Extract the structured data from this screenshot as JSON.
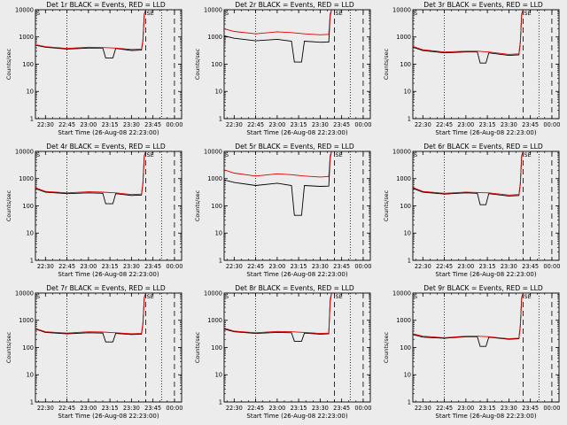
{
  "chart_data": [
    {
      "title": "Det 1r BLACK = Events, RED = LLD",
      "type": "line",
      "xlabel": "Start Time (26-Aug-08 22:23:00)",
      "ylabel": "Counts/sec",
      "x_ticks": [
        "22:30",
        "22:45",
        "23:00",
        "23:15",
        "23:30",
        "23:45",
        "00:00"
      ],
      "y_ticks": [
        "1",
        "10",
        "100",
        "1000",
        "10000"
      ],
      "ylim": [
        1,
        10000
      ],
      "yscale": "log",
      "series": [
        {
          "color": "#000000",
          "x": [
            "22:23",
            "22:30",
            "22:45",
            "23:00",
            "23:10",
            "23:12",
            "23:17",
            "23:19",
            "23:30",
            "23:37",
            "23:38",
            "23:39",
            "23:40"
          ],
          "values": [
            500,
            420,
            360,
            390,
            390,
            170,
            170,
            380,
            320,
            330,
            700,
            7000,
            10000
          ]
        },
        {
          "color": "#e00000",
          "x": [
            "22:23",
            "22:30",
            "22:45",
            "23:00",
            "23:10",
            "23:19",
            "23:30",
            "23:37",
            "23:38",
            "23:39",
            "23:40"
          ],
          "values": [
            520,
            440,
            380,
            420,
            410,
            390,
            350,
            360,
            760,
            7200,
            10000
          ]
        }
      ],
      "corner_left": "S",
      "corner_right": "SE"
    },
    {
      "title": "Det 2r BLACK = Events, RED = LLD",
      "type": "line",
      "xlabel": "Start Time (26-Aug-08 22:23:00)",
      "ylabel": "Counts/sec",
      "x_ticks": [
        "22:30",
        "22:45",
        "23:00",
        "23:15",
        "23:30",
        "23:45",
        "00:00"
      ],
      "y_ticks": [
        "1",
        "10",
        "100",
        "1000",
        "10000"
      ],
      "ylim": [
        1,
        10000
      ],
      "yscale": "log",
      "series": [
        {
          "color": "#000000",
          "x": [
            "22:23",
            "22:30",
            "22:45",
            "23:00",
            "23:10",
            "23:12",
            "23:17",
            "23:19",
            "23:30",
            "23:36",
            "23:37",
            "23:38"
          ],
          "values": [
            1100,
            900,
            720,
            820,
            700,
            120,
            120,
            700,
            640,
            650,
            6000,
            10000
          ]
        },
        {
          "color": "#e00000",
          "x": [
            "22:23",
            "22:30",
            "22:45",
            "23:00",
            "23:10",
            "23:19",
            "23:30",
            "23:36",
            "23:37",
            "23:38"
          ],
          "values": [
            2000,
            1600,
            1300,
            1550,
            1450,
            1300,
            1200,
            1250,
            7000,
            10000
          ]
        }
      ],
      "corner_left": "S",
      "corner_right": "SE"
    },
    {
      "title": "Det 3r BLACK = Events, RED = LLD",
      "type": "line",
      "xlabel": "Start Time (26-Aug-08 22:23:00)",
      "ylabel": "Counts/sec",
      "x_ticks": [
        "22:30",
        "22:45",
        "23:00",
        "23:15",
        "23:30",
        "23:45",
        "00:00"
      ],
      "y_ticks": [
        "1",
        "10",
        "100",
        "1000",
        "10000"
      ],
      "ylim": [
        1,
        10000
      ],
      "yscale": "log",
      "series": [
        {
          "color": "#000000",
          "x": [
            "22:23",
            "22:30",
            "22:45",
            "23:00",
            "23:08",
            "23:10",
            "23:14",
            "23:16",
            "23:30",
            "23:37",
            "23:38",
            "23:39",
            "23:40"
          ],
          "values": [
            420,
            320,
            260,
            280,
            280,
            110,
            110,
            260,
            210,
            220,
            600,
            7000,
            10000
          ]
        },
        {
          "color": "#e00000",
          "x": [
            "22:23",
            "22:30",
            "22:45",
            "23:00",
            "23:08",
            "23:16",
            "23:30",
            "23:37",
            "23:38",
            "23:39",
            "23:40"
          ],
          "values": [
            450,
            340,
            280,
            300,
            300,
            280,
            230,
            240,
            650,
            7200,
            10000
          ]
        }
      ],
      "corner_left": "S",
      "corner_right": "SE"
    },
    {
      "title": "Det 4r BLACK = Events, RED = LLD",
      "type": "line",
      "xlabel": "Start Time (26-Aug-08 22:23:00)",
      "ylabel": "Counts/sec",
      "x_ticks": [
        "22:30",
        "22:45",
        "23:00",
        "23:15",
        "23:30",
        "23:45",
        "00:00"
      ],
      "y_ticks": [
        "1",
        "10",
        "100",
        "1000",
        "10000"
      ],
      "ylim": [
        1,
        10000
      ],
      "yscale": "log",
      "series": [
        {
          "color": "#000000",
          "x": [
            "22:23",
            "22:30",
            "22:45",
            "23:00",
            "23:10",
            "23:12",
            "23:17",
            "23:19",
            "23:30",
            "23:37",
            "23:38",
            "23:39",
            "23:40"
          ],
          "values": [
            430,
            320,
            280,
            300,
            290,
            120,
            120,
            280,
            240,
            250,
            650,
            7000,
            10000
          ]
        },
        {
          "color": "#e00000",
          "x": [
            "22:23",
            "22:30",
            "22:45",
            "23:00",
            "23:10",
            "23:19",
            "23:30",
            "23:37",
            "23:38",
            "23:39",
            "23:40"
          ],
          "values": [
            460,
            340,
            300,
            330,
            320,
            300,
            260,
            270,
            700,
            7200,
            10000
          ]
        }
      ],
      "corner_left": "S",
      "corner_right": "SE"
    },
    {
      "title": "Det 5r BLACK = Events, RED = LLD",
      "type": "line",
      "xlabel": "Start Time (26-Aug-08 22:23:00)",
      "ylabel": "Counts/sec",
      "x_ticks": [
        "22:30",
        "22:45",
        "23:00",
        "23:15",
        "23:30",
        "23:45",
        "00:00"
      ],
      "y_ticks": [
        "1",
        "10",
        "100",
        "1000",
        "10000"
      ],
      "ylim": [
        1,
        10000
      ],
      "yscale": "log",
      "series": [
        {
          "color": "#000000",
          "x": [
            "22:23",
            "22:30",
            "22:45",
            "23:00",
            "23:10",
            "23:12",
            "23:17",
            "23:19",
            "23:30",
            "23:36",
            "23:37",
            "23:38"
          ],
          "values": [
            900,
            720,
            560,
            680,
            560,
            45,
            45,
            560,
            520,
            530,
            6000,
            10000
          ]
        },
        {
          "color": "#e00000",
          "x": [
            "22:23",
            "22:30",
            "22:45",
            "23:00",
            "23:10",
            "23:19",
            "23:30",
            "23:36",
            "23:37",
            "23:38"
          ],
          "values": [
            2100,
            1600,
            1250,
            1500,
            1400,
            1250,
            1150,
            1200,
            7000,
            10000
          ]
        }
      ],
      "corner_left": "S",
      "corner_right": "SE"
    },
    {
      "title": "Det 6r BLACK = Events, RED = LLD",
      "type": "line",
      "xlabel": "Start Time (26-Aug-08 22:23:00)",
      "ylabel": "Counts/sec",
      "x_ticks": [
        "22:30",
        "22:45",
        "23:00",
        "23:15",
        "23:30",
        "23:45",
        "00:00"
      ],
      "y_ticks": [
        "1",
        "10",
        "100",
        "1000",
        "10000"
      ],
      "ylim": [
        1,
        10000
      ],
      "yscale": "log",
      "series": [
        {
          "color": "#000000",
          "x": [
            "22:23",
            "22:30",
            "22:45",
            "23:00",
            "23:08",
            "23:10",
            "23:14",
            "23:16",
            "23:30",
            "23:37",
            "23:38",
            "23:39",
            "23:40"
          ],
          "values": [
            440,
            320,
            270,
            300,
            290,
            110,
            110,
            280,
            230,
            240,
            620,
            7000,
            10000
          ]
        },
        {
          "color": "#e00000",
          "x": [
            "22:23",
            "22:30",
            "22:45",
            "23:00",
            "23:08",
            "23:16",
            "23:30",
            "23:37",
            "23:38",
            "23:39",
            "23:40"
          ],
          "values": [
            470,
            340,
            290,
            320,
            310,
            300,
            250,
            260,
            680,
            7200,
            10000
          ]
        }
      ],
      "corner_left": "S",
      "corner_right": "SE"
    },
    {
      "title": "Det 7r BLACK = Events, RED = LLD",
      "type": "line",
      "xlabel": "Start Time (26-Aug-08 22:23:00)",
      "ylabel": "Counts/sec",
      "x_ticks": [
        "22:30",
        "22:45",
        "23:00",
        "23:15",
        "23:30",
        "23:45",
        "00:00"
      ],
      "y_ticks": [
        "1",
        "10",
        "100",
        "1000",
        "10000"
      ],
      "ylim": [
        1,
        10000
      ],
      "yscale": "log",
      "series": [
        {
          "color": "#000000",
          "x": [
            "22:23",
            "22:30",
            "22:45",
            "23:00",
            "23:10",
            "23:12",
            "23:17",
            "23:19",
            "23:30",
            "23:37",
            "23:38",
            "23:39",
            "23:40"
          ],
          "values": [
            480,
            360,
            320,
            350,
            340,
            160,
            160,
            330,
            300,
            310,
            720,
            7000,
            10000
          ]
        },
        {
          "color": "#e00000",
          "x": [
            "22:23",
            "22:30",
            "22:45",
            "23:00",
            "23:10",
            "23:19",
            "23:30",
            "23:37",
            "23:38",
            "23:39",
            "23:40"
          ],
          "values": [
            500,
            380,
            340,
            380,
            370,
            350,
            320,
            330,
            780,
            7200,
            10000
          ]
        }
      ],
      "corner_left": "S",
      "corner_right": "SE"
    },
    {
      "title": "Det 8r BLACK = Events, RED = LLD",
      "type": "line",
      "xlabel": "Start Time (26-Aug-08 22:23:00)",
      "ylabel": "Counts/sec",
      "x_ticks": [
        "22:30",
        "22:45",
        "23:00",
        "23:15",
        "23:30",
        "23:45",
        "00:00"
      ],
      "y_ticks": [
        "1",
        "10",
        "100",
        "1000",
        "10000"
      ],
      "ylim": [
        1,
        10000
      ],
      "yscale": "log",
      "series": [
        {
          "color": "#000000",
          "x": [
            "22:23",
            "22:30",
            "22:45",
            "23:00",
            "23:10",
            "23:12",
            "23:17",
            "23:19",
            "23:30",
            "23:36",
            "23:37",
            "23:38"
          ],
          "values": [
            480,
            380,
            330,
            360,
            350,
            170,
            170,
            340,
            310,
            320,
            5000,
            10000
          ]
        },
        {
          "color": "#e00000",
          "x": [
            "22:23",
            "22:30",
            "22:45",
            "23:00",
            "23:10",
            "23:19",
            "23:30",
            "23:36",
            "23:37",
            "23:38"
          ],
          "values": [
            520,
            400,
            350,
            390,
            380,
            360,
            330,
            340,
            6000,
            10000
          ]
        }
      ],
      "corner_left": "S",
      "corner_right": "SE"
    },
    {
      "title": "Det 9r BLACK = Events, RED = LLD",
      "type": "line",
      "xlabel": "Start Time (26-Aug-08 22:23:00)",
      "ylabel": "Counts/sec",
      "x_ticks": [
        "22:30",
        "22:45",
        "23:00",
        "23:15",
        "23:30",
        "23:45",
        "00:00"
      ],
      "y_ticks": [
        "1",
        "10",
        "100",
        "1000",
        "10000"
      ],
      "ylim": [
        1,
        10000
      ],
      "yscale": "log",
      "series": [
        {
          "color": "#000000",
          "x": [
            "22:23",
            "22:30",
            "22:45",
            "23:00",
            "23:08",
            "23:10",
            "23:14",
            "23:16",
            "23:30",
            "23:37",
            "23:38",
            "23:39",
            "23:40"
          ],
          "values": [
            300,
            240,
            220,
            250,
            250,
            110,
            110,
            240,
            200,
            210,
            600,
            7000,
            10000
          ]
        },
        {
          "color": "#e00000",
          "x": [
            "22:23",
            "22:30",
            "22:45",
            "23:00",
            "23:08",
            "23:16",
            "23:30",
            "23:37",
            "23:38",
            "23:39",
            "23:40"
          ],
          "values": [
            320,
            260,
            230,
            260,
            260,
            250,
            210,
            220,
            650,
            7200,
            10000
          ]
        }
      ],
      "corner_left": "S",
      "corner_right": "SE"
    }
  ]
}
